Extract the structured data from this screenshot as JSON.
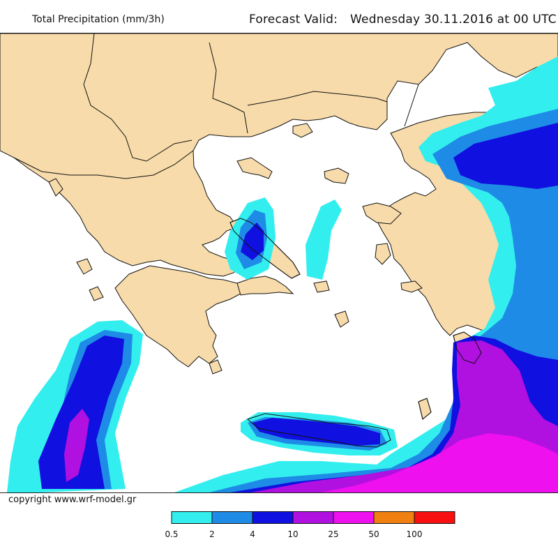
{
  "header": {
    "product_title": "Total Precipitation (mm/3h)",
    "valid_label": "Forecast Valid:",
    "valid_time": "Wednesday 30.11.2016 at 00 UTC"
  },
  "footer": {
    "copyright": "copyright www.wrf-model.gr"
  },
  "legend": {
    "bins": [
      {
        "color": "#33eeee"
      },
      {
        "color": "#1e8ce6"
      },
      {
        "color": "#1010e0"
      },
      {
        "color": "#b010e0"
      },
      {
        "color": "#ee10ee"
      },
      {
        "color": "#f08010"
      },
      {
        "color": "#f81010"
      }
    ],
    "tick_labels": [
      "0.5",
      "2",
      "4",
      "10",
      "25",
      "50",
      "100"
    ]
  },
  "map_colors": {
    "sea": "#ffffff",
    "land": "#f7dbaa",
    "border": "#111111"
  }
}
